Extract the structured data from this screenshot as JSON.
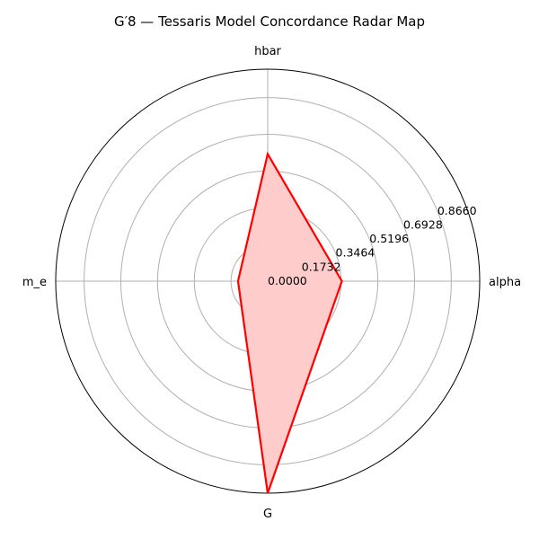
{
  "chart_data": {
    "type": "radar",
    "title": "G′8 — Tessaris Model Concordance Radar Map",
    "axes": [
      "alpha",
      "hbar",
      "m_e",
      "G"
    ],
    "series": [
      {
        "values": [
          0.35,
          0.6,
          0.14,
          1.0
        ],
        "color": "#ff0000",
        "fill": "#ffcccc"
      }
    ],
    "rlim": [
      0,
      1.0
    ],
    "rticks": [
      0.0,
      0.1732,
      0.3464,
      0.5196,
      0.6928,
      0.866
    ],
    "rtick_labels": [
      "0.0000",
      "0.1732",
      "0.3464",
      "0.5196",
      "0.6928",
      "0.8660"
    ],
    "grid": true,
    "direction": "counterclockwise",
    "start_angle": "east"
  }
}
